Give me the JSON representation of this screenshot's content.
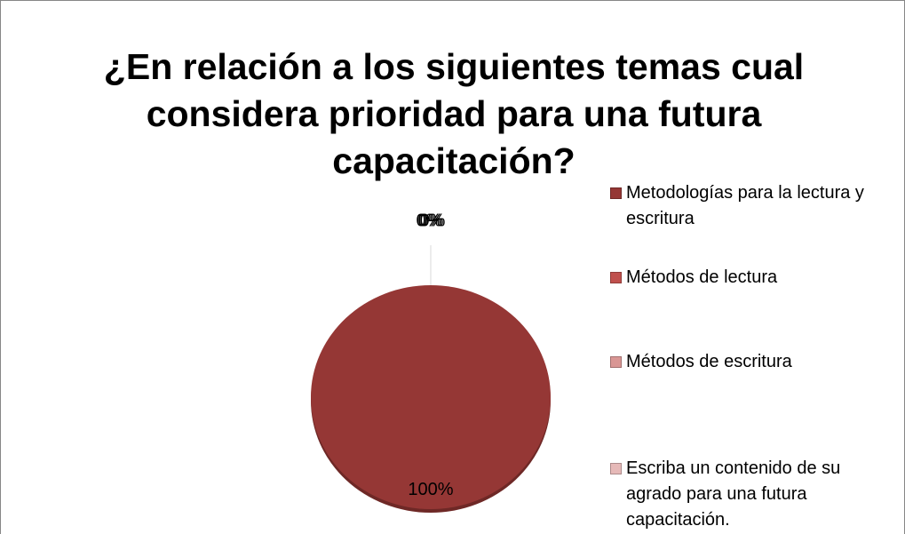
{
  "chart_data": {
    "type": "pie",
    "title": "¿En relación a los siguientes temas cual considera prioridad para una futura capacitación?",
    "categories": [
      "Metodologías para la lectura y escritura",
      "Métodos de lectura",
      "Métodos de escritura",
      "Escriba un contenido de su agrado para una futura capacitación."
    ],
    "values": [
      100,
      0,
      0,
      0
    ],
    "value_labels": [
      "100%",
      "0%",
      "0%",
      "0%"
    ],
    "colors": [
      "#953735",
      "#c0504d",
      "#d99694",
      "#e6b9b8"
    ],
    "legend": "right"
  }
}
